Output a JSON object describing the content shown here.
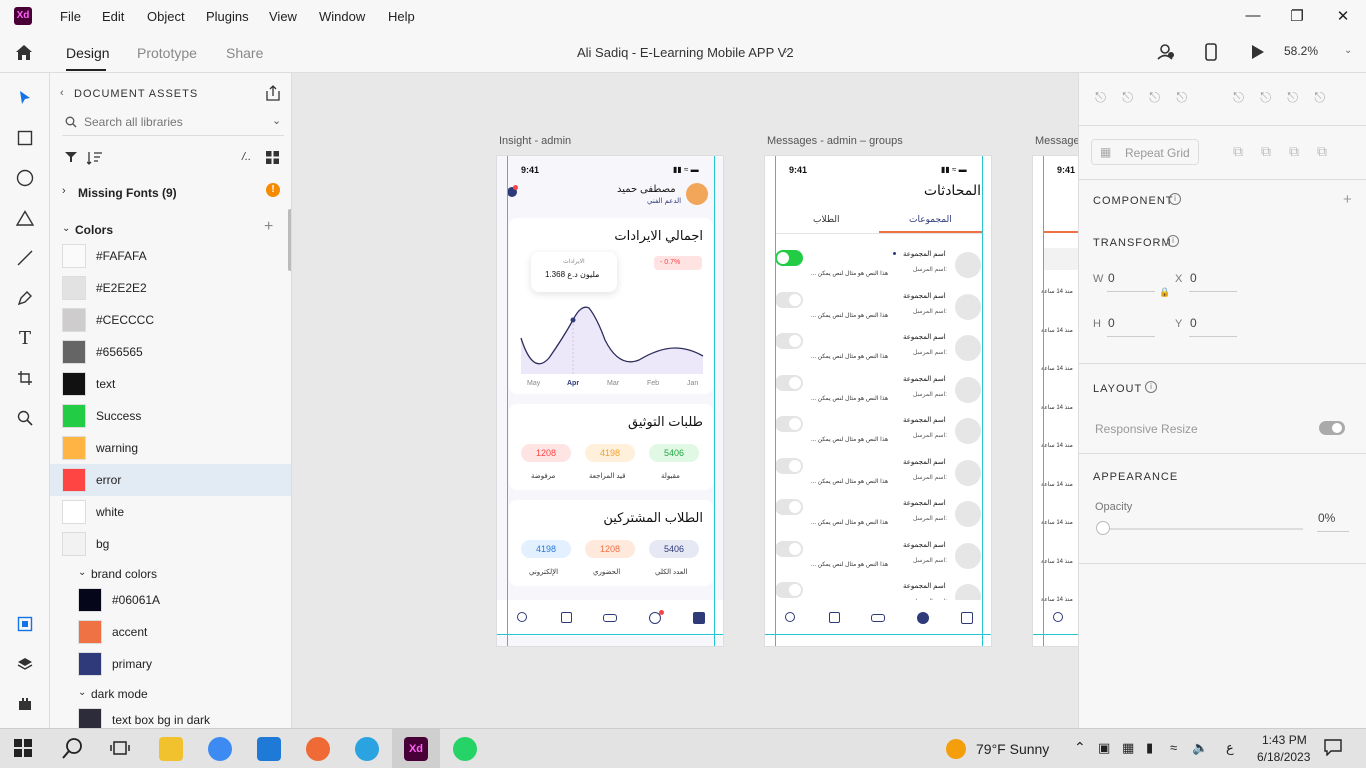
{
  "app": {
    "logo": "Xd"
  },
  "menu": [
    "File",
    "Edit",
    "Object",
    "Plugins",
    "View",
    "Window",
    "Help"
  ],
  "modes": {
    "design": "Design",
    "prototype": "Prototype",
    "share": "Share"
  },
  "document": {
    "title": "Ali Sadiq - E-Learning Mobile APP V2",
    "zoom": "58.2%"
  },
  "assets": {
    "title": "DOCUMENT ASSETS",
    "search_placeholder": "Search all libraries",
    "missing_fonts": "Missing Fonts (9)",
    "colors_heading": "Colors",
    "colors": [
      {
        "label": "#FAFAFA",
        "hex": "#FAFAFA"
      },
      {
        "label": "#E2E2E2",
        "hex": "#E2E2E2"
      },
      {
        "label": "#CECCCC",
        "hex": "#CECCCC"
      },
      {
        "label": "#656565",
        "hex": "#656565"
      },
      {
        "label": "text",
        "hex": "#111111"
      },
      {
        "label": "Success",
        "hex": "#22CC44"
      },
      {
        "label": "warning",
        "hex": "#FFB444"
      },
      {
        "label": "error",
        "hex": "#FF4444"
      },
      {
        "label": "white",
        "hex": "#FFFFFF"
      },
      {
        "label": "bg",
        "hex": "#F2F2F2"
      }
    ],
    "brand_heading": "brand colors",
    "brand": [
      {
        "label": "#06061A",
        "hex": "#06061A"
      },
      {
        "label": "accent",
        "hex": "#EE7244"
      },
      {
        "label": "primary",
        "hex": "#2E3A7A"
      }
    ],
    "dark_heading": "dark mode",
    "dark": [
      {
        "label": "text box bg in dark",
        "hex": "#2C2C3A"
      }
    ]
  },
  "artboards": {
    "insight": {
      "label": "Insight - admin",
      "time": "9:41",
      "user_name": "مصطفى حميد",
      "user_role": "الدعم الفني",
      "revenue_title": "اجمالي الايرادات",
      "revenue_change": "- 0.7%",
      "tooltip_label": "الايرادات",
      "tooltip_value": "مليون د.ع 1.368",
      "months": [
        "May",
        "Apr",
        "Mar",
        "Feb",
        "Jan"
      ],
      "verify_title": "طلبات التوثيق",
      "verify": [
        {
          "value": "1208",
          "label": "مرفوضة"
        },
        {
          "value": "4198",
          "label": "قيد المراجعة"
        },
        {
          "value": "5406",
          "label": "مقبولة"
        }
      ],
      "students_title": "الطلاب المشتركين",
      "students": [
        {
          "value": "4198",
          "label": "الإلكتروني"
        },
        {
          "value": "1208",
          "label": "الحضوري"
        },
        {
          "value": "5406",
          "label": "العدد الكلي"
        }
      ]
    },
    "messages": {
      "label": "Messages - admin – groups",
      "time": "9:41",
      "title": "المحادثات",
      "tab_students": "الطلاب",
      "tab_groups": "المجموعات",
      "group_name": "اسم المجموعة",
      "sender": "اسم المرسل:",
      "preview": "... هذا النص هو مثال لنص يمكن"
    },
    "third": {
      "label": "Message",
      "time": "9:41",
      "timestamp": "منذ 14 ساعة"
    }
  },
  "props": {
    "repeat_grid": "Repeat Grid",
    "component": "COMPONENT",
    "transform": "TRANSFORM",
    "w_label": "W",
    "w_value": "0",
    "x_label": "X",
    "x_value": "0",
    "h_label": "H",
    "h_value": "0",
    "y_label": "Y",
    "y_value": "0",
    "layout": "LAYOUT",
    "responsive": "Responsive Resize",
    "appearance": "APPEARANCE",
    "opacity_label": "Opacity",
    "opacity_value": "0%"
  },
  "taskbar": {
    "weather": "79°F  Sunny",
    "time": "1:43 PM",
    "date": "6/18/2023",
    "lang": "ع"
  }
}
